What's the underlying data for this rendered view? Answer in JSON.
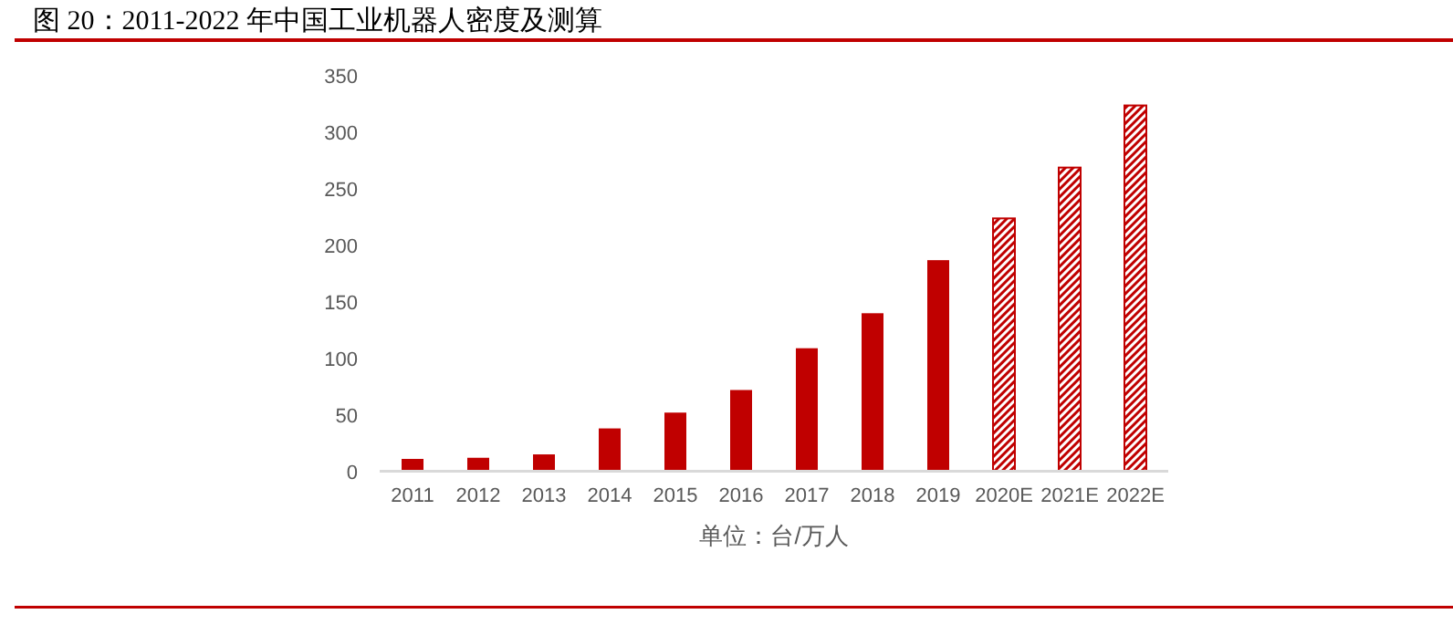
{
  "chart_data": {
    "type": "bar",
    "title": "图 20：2011-2022 年中国工业机器人密度及测算",
    "xlabel": "单位：台/万人",
    "categories": [
      "2011",
      "2012",
      "2013",
      "2014",
      "2015",
      "2016",
      "2017",
      "2018",
      "2019",
      "2020E",
      "2021E",
      "2022E"
    ],
    "stacked": true,
    "series": [
      {
        "color": "#c00000",
        "values": [
          11,
          12,
          15,
          38,
          52,
          72,
          109,
          140,
          187,
          null,
          null,
          null
        ]
      },
      {
        "color": "#c00000",
        "values": [
          null,
          null,
          null,
          null,
          null,
          null,
          null,
          null,
          null,
          224,
          269,
          324
        ]
      }
    ],
    "ylim": [
      0,
      350
    ],
    "yticks": [
      0,
      50,
      100,
      150,
      200,
      250,
      300,
      350
    ],
    "grid": false
  }
}
